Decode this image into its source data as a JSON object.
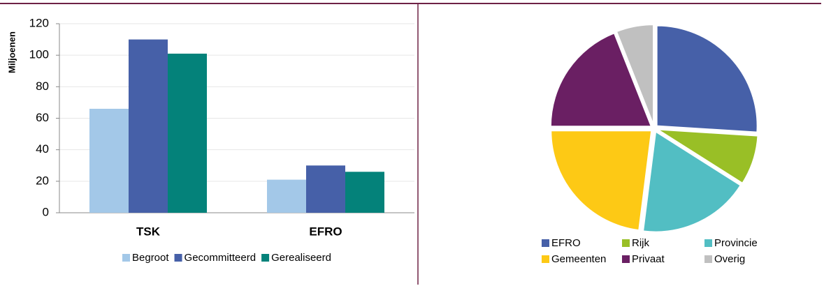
{
  "chart_data": [
    {
      "type": "bar",
      "y_label": "Miljoenen",
      "categories": [
        "TSK",
        "EFRO"
      ],
      "series": [
        {
          "name": "Begroot",
          "color": "#a3c8e8",
          "values": [
            66,
            21
          ]
        },
        {
          "name": "Gecommitteerd",
          "color": "#4660a8",
          "values": [
            110,
            30
          ]
        },
        {
          "name": "Gerealiseerd",
          "color": "#04827a",
          "values": [
            101,
            26
          ]
        }
      ],
      "ylim": [
        0,
        120
      ],
      "yticks": [
        0,
        20,
        40,
        60,
        80,
        100,
        120
      ],
      "grid": true,
      "legend": "bottom"
    },
    {
      "type": "pie",
      "categories": [
        "EFRO",
        "Rijk",
        "Provincie",
        "Gemeenten",
        "Privaat",
        "Overig"
      ],
      "values": [
        26,
        8,
        18,
        23,
        19,
        6
      ],
      "colors": [
        "#4660a8",
        "#99bf26",
        "#52bec3",
        "#fdc915",
        "#6a1f63",
        "#c0c0c0"
      ],
      "legend": "bottom"
    }
  ]
}
